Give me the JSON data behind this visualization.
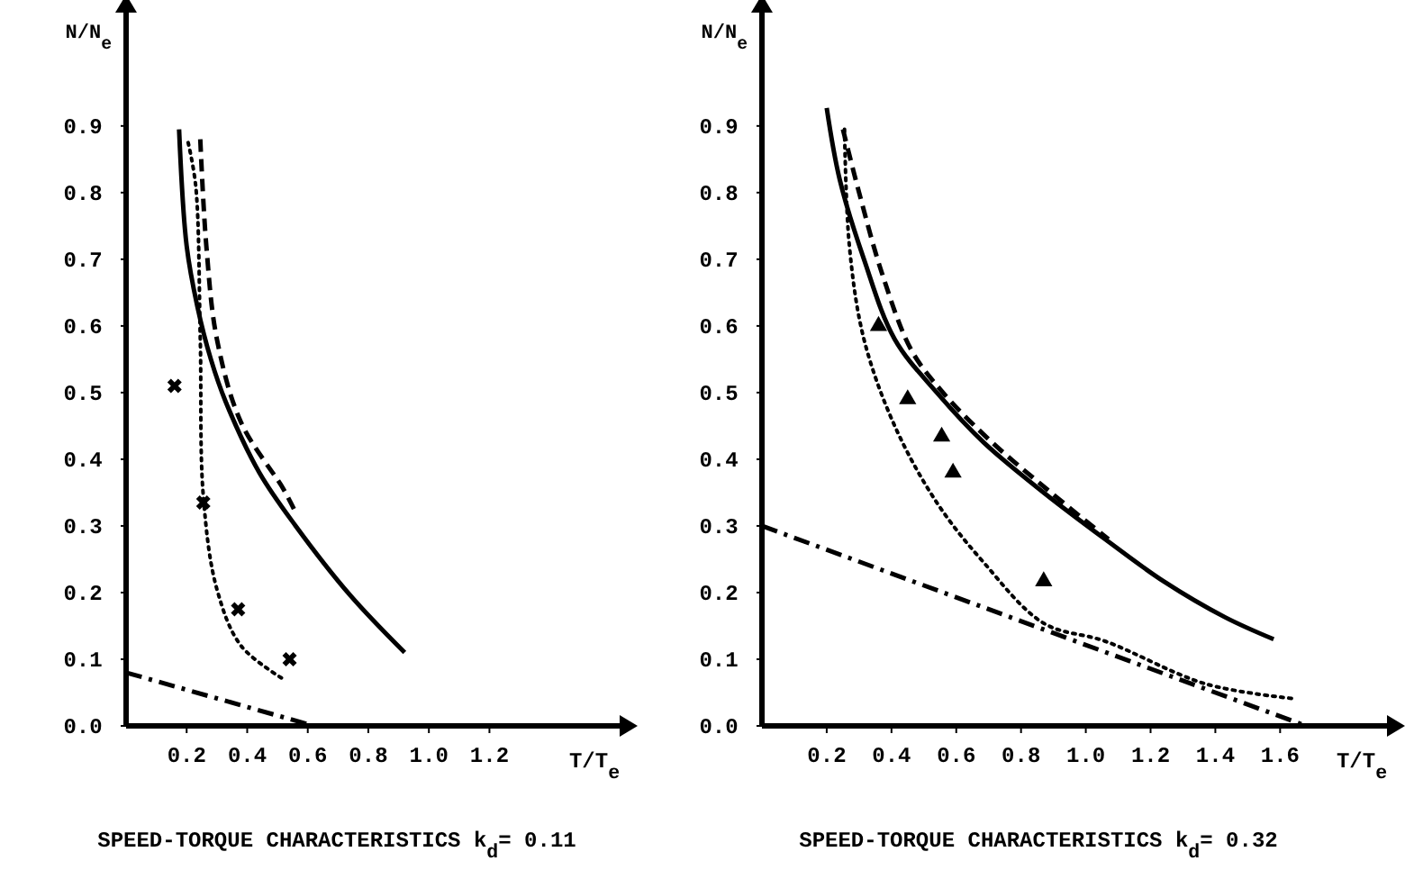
{
  "chart_data": [
    {
      "type": "line",
      "title": "SPEED-TORQUE CHARACTERISTICS k$_{d}$= 0.11",
      "xlabel": "T/T$_{e}$",
      "ylabel": "N/N$_{e}$",
      "xlim": [
        0,
        1.63
      ],
      "ylim": [
        0,
        1.07
      ],
      "xticks": [
        0.2,
        0.4,
        0.6,
        0.8,
        {
          "value": 1,
          "label": "1.0"
        },
        1.2
      ],
      "yticks": [
        {
          "value": 0,
          "label": "0.0"
        },
        0.1,
        0.2,
        0.3,
        0.4,
        0.5,
        0.6,
        0.7,
        0.8,
        0.9
      ],
      "series": [
        {
          "line_style": "solid",
          "color": "#000000",
          "x": [
            0.175,
            0.2,
            0.235,
            0.28,
            0.33,
            0.44,
            0.56,
            0.74,
            0.92
          ],
          "values": [
            0.895,
            0.72,
            0.63,
            0.55,
            0.485,
            0.38,
            0.3,
            0.196,
            0.11
          ]
        },
        {
          "line_style": "dashed",
          "color": "#000000",
          "x": [
            0.245,
            0.265,
            0.3,
            0.38,
            0.52,
            0.56
          ],
          "values": [
            0.88,
            0.72,
            0.58,
            0.455,
            0.355,
            0.32
          ]
        },
        {
          "line_style": "dotted",
          "color": "#000000",
          "x": [
            0.205,
            0.23,
            0.245,
            0.255,
            0.3,
            0.38,
            0.52
          ],
          "values": [
            0.875,
            0.81,
            0.58,
            0.345,
            0.205,
            0.12,
            0.07
          ]
        },
        {
          "line_style": "dashdot",
          "color": "#000000",
          "x": [
            0,
            0.62
          ],
          "values": [
            0.08,
            0
          ]
        },
        {
          "type": "scatter",
          "marker": "cross",
          "color": "#000000",
          "x": [
            0.16,
            0.255,
            0.37,
            0.54
          ],
          "values": [
            0.51,
            0.335,
            0.175,
            0.1
          ]
        }
      ]
    },
    {
      "type": "line",
      "title": "SPEED-TORQUE CHARACTERISTICS k$_{d}$= 0.32",
      "xlabel": "T/T$_{e}$",
      "ylabel": "N/N$_{e}$",
      "xlim": [
        0,
        1.93
      ],
      "ylim": [
        0,
        1.07
      ],
      "xticks": [
        0.2,
        0.4,
        0.6,
        0.8,
        {
          "value": 1,
          "label": "1.0"
        },
        1.2,
        1.4,
        1.6
      ],
      "yticks": [
        {
          "value": 0,
          "label": "0.0"
        },
        0.1,
        0.2,
        0.3,
        0.4,
        0.5,
        0.6,
        0.7,
        0.8,
        0.9
      ],
      "series": [
        {
          "line_style": "solid",
          "color": "#000000",
          "x": [
            0.2,
            0.24,
            0.315,
            0.41,
            0.54,
            0.685,
            0.87,
            1.06,
            1.24,
            1.43,
            1.58
          ],
          "values": [
            0.927,
            0.82,
            0.7,
            0.58,
            0.5,
            0.425,
            0.35,
            0.28,
            0.217,
            0.163,
            0.13
          ]
        },
        {
          "line_style": "dashed",
          "color": "#000000",
          "x": [
            0.25,
            0.3,
            0.37,
            0.46,
            0.55,
            0.7,
            0.88,
            1.07
          ],
          "values": [
            0.895,
            0.8,
            0.68,
            0.565,
            0.505,
            0.43,
            0.355,
            0.28
          ]
        },
        {
          "line_style": "dotted",
          "color": "#000000",
          "x": [
            0.255,
            0.27,
            0.315,
            0.41,
            0.54,
            0.685,
            0.87,
            1.06,
            1.37,
            1.64
          ],
          "values": [
            0.895,
            0.72,
            0.58,
            0.45,
            0.335,
            0.245,
            0.154,
            0.127,
            0.063,
            0.041
          ]
        },
        {
          "line_style": "dashdot",
          "color": "#000000",
          "x": [
            0,
            1.68
          ],
          "values": [
            0.3,
            0
          ]
        },
        {
          "type": "scatter",
          "marker": "triangle",
          "color": "#000000",
          "x": [
            0.36,
            0.45,
            0.555,
            0.59,
            0.87
          ],
          "values": [
            0.6,
            0.49,
            0.434,
            0.38,
            0.217
          ]
        }
      ]
    }
  ]
}
